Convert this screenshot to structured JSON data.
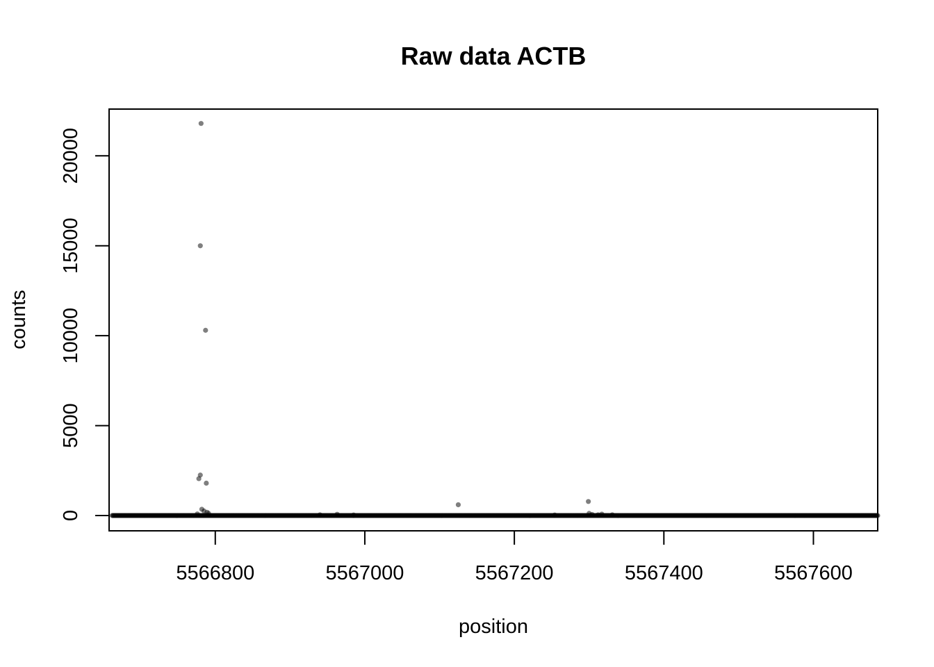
{
  "chart_data": {
    "type": "scatter",
    "title": "Raw data ACTB",
    "xlabel": "position",
    "ylabel": "counts",
    "xlim": [
      5566658,
      5567686
    ],
    "ylim": [
      -850,
      22600
    ],
    "xticks": [
      5566800,
      5567000,
      5567200,
      5567400,
      5567600
    ],
    "xtick_labels": [
      "5566800",
      "5567000",
      "5567200",
      "5567400",
      "5567600"
    ],
    "yticks": [
      0,
      5000,
      10000,
      15000,
      20000
    ],
    "ytick_labels": [
      "0",
      "5000",
      "10000",
      "15000",
      "20000"
    ],
    "baseline": {
      "x_start": 5566662,
      "x_end": 5567686,
      "step": 1,
      "value": 0
    },
    "points": [
      {
        "x": 5566781,
        "y": 21800
      },
      {
        "x": 5566780,
        "y": 15000
      },
      {
        "x": 5566787,
        "y": 10300
      },
      {
        "x": 5566780,
        "y": 2250
      },
      {
        "x": 5566778,
        "y": 2050
      },
      {
        "x": 5566788,
        "y": 1800
      },
      {
        "x": 5566782,
        "y": 350
      },
      {
        "x": 5566785,
        "y": 250
      },
      {
        "x": 5566789,
        "y": 180
      },
      {
        "x": 5566791,
        "y": 120
      },
      {
        "x": 5566776,
        "y": 90
      },
      {
        "x": 5567125,
        "y": 600
      },
      {
        "x": 5567299,
        "y": 780
      },
      {
        "x": 5567300,
        "y": 120
      },
      {
        "x": 5567304,
        "y": 60
      },
      {
        "x": 5567312,
        "y": 40
      },
      {
        "x": 5567317,
        "y": 80
      },
      {
        "x": 5567331,
        "y": 40
      },
      {
        "x": 5566963,
        "y": 70
      },
      {
        "x": 5566940,
        "y": 40
      },
      {
        "x": 5566985,
        "y": 30
      },
      {
        "x": 5567254,
        "y": 30
      }
    ],
    "marker_color": "#000000",
    "marker_opacity": 0.5,
    "grid": false
  }
}
